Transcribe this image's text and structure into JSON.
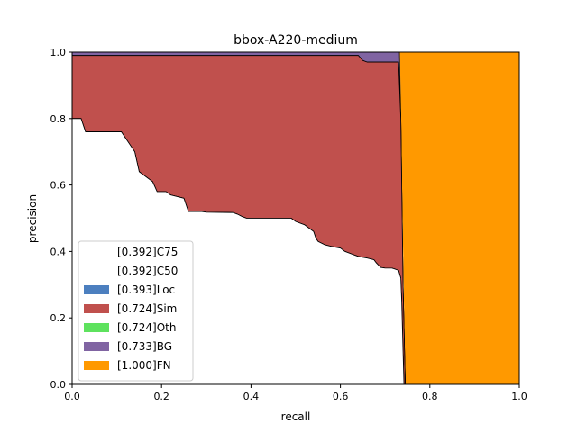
{
  "chart_data": {
    "type": "area",
    "title": "bbox-A220-medium",
    "xlabel": "recall",
    "ylabel": "precision",
    "xlim": [
      0,
      1
    ],
    "ylim": [
      0,
      1
    ],
    "xticks": [
      "0.0",
      "0.2",
      "0.4",
      "0.6",
      "0.8",
      "1.0"
    ],
    "yticks": [
      "0.0",
      "0.2",
      "0.4",
      "0.6",
      "0.8",
      "1.0"
    ],
    "grid": false,
    "legend_position": "lower-left",
    "series": [
      {
        "name": "[0.392]C75",
        "color": "#ffffff",
        "points": [
          [
            0,
            0.8
          ],
          [
            0.02,
            0.8
          ],
          [
            0.03,
            0.76
          ],
          [
            0.11,
            0.76
          ],
          [
            0.12,
            0.74
          ],
          [
            0.13,
            0.72
          ],
          [
            0.14,
            0.7
          ],
          [
            0.15,
            0.64
          ],
          [
            0.16,
            0.63
          ],
          [
            0.18,
            0.61
          ],
          [
            0.19,
            0.58
          ],
          [
            0.21,
            0.58
          ],
          [
            0.22,
            0.57
          ],
          [
            0.25,
            0.56
          ],
          [
            0.26,
            0.52
          ],
          [
            0.29,
            0.52
          ],
          [
            0.3,
            0.518
          ],
          [
            0.36,
            0.517
          ],
          [
            0.37,
            0.512
          ],
          [
            0.38,
            0.505
          ],
          [
            0.39,
            0.5
          ],
          [
            0.49,
            0.5
          ],
          [
            0.5,
            0.49
          ],
          [
            0.52,
            0.48
          ],
          [
            0.53,
            0.47
          ],
          [
            0.54,
            0.46
          ],
          [
            0.545,
            0.44
          ],
          [
            0.55,
            0.43
          ],
          [
            0.565,
            0.42
          ],
          [
            0.58,
            0.415
          ],
          [
            0.6,
            0.41
          ],
          [
            0.61,
            0.4
          ],
          [
            0.63,
            0.39
          ],
          [
            0.64,
            0.385
          ],
          [
            0.66,
            0.38
          ],
          [
            0.675,
            0.375
          ],
          [
            0.68,
            0.366
          ],
          [
            0.69,
            0.352
          ],
          [
            0.7,
            0.35
          ],
          [
            0.715,
            0.35
          ],
          [
            0.72,
            0.348
          ],
          [
            0.73,
            0.343
          ],
          [
            0.735,
            0.32
          ],
          [
            0.737,
            0.25
          ],
          [
            0.74,
            0.1
          ],
          [
            0.742,
            0
          ]
        ]
      },
      {
        "name": "[0.392]C50",
        "color": "#ffffff",
        "points": [
          [
            0,
            0.8
          ],
          [
            0.02,
            0.8
          ],
          [
            0.03,
            0.76
          ],
          [
            0.11,
            0.76
          ],
          [
            0.12,
            0.74
          ],
          [
            0.13,
            0.72
          ],
          [
            0.14,
            0.7
          ],
          [
            0.15,
            0.64
          ],
          [
            0.16,
            0.63
          ],
          [
            0.18,
            0.61
          ],
          [
            0.19,
            0.58
          ],
          [
            0.21,
            0.58
          ],
          [
            0.22,
            0.57
          ],
          [
            0.25,
            0.56
          ],
          [
            0.26,
            0.52
          ],
          [
            0.29,
            0.52
          ],
          [
            0.3,
            0.518
          ],
          [
            0.36,
            0.517
          ],
          [
            0.37,
            0.512
          ],
          [
            0.38,
            0.505
          ],
          [
            0.39,
            0.5
          ],
          [
            0.49,
            0.5
          ],
          [
            0.5,
            0.49
          ],
          [
            0.52,
            0.48
          ],
          [
            0.53,
            0.47
          ],
          [
            0.54,
            0.46
          ],
          [
            0.545,
            0.44
          ],
          [
            0.55,
            0.43
          ],
          [
            0.565,
            0.42
          ],
          [
            0.58,
            0.415
          ],
          [
            0.6,
            0.41
          ],
          [
            0.61,
            0.4
          ],
          [
            0.63,
            0.39
          ],
          [
            0.64,
            0.385
          ],
          [
            0.66,
            0.38
          ],
          [
            0.675,
            0.375
          ],
          [
            0.68,
            0.366
          ],
          [
            0.69,
            0.352
          ],
          [
            0.7,
            0.35
          ],
          [
            0.715,
            0.35
          ],
          [
            0.72,
            0.348
          ],
          [
            0.73,
            0.343
          ],
          [
            0.735,
            0.32
          ],
          [
            0.737,
            0.25
          ],
          [
            0.74,
            0.1
          ],
          [
            0.742,
            0
          ]
        ]
      },
      {
        "name": "[0.393]Loc",
        "color": "#4c7fbf",
        "points": [
          [
            0,
            0.8
          ],
          [
            0.02,
            0.8
          ],
          [
            0.03,
            0.76
          ],
          [
            0.11,
            0.76
          ],
          [
            0.12,
            0.74
          ],
          [
            0.13,
            0.72
          ],
          [
            0.14,
            0.7
          ],
          [
            0.15,
            0.64
          ],
          [
            0.16,
            0.63
          ],
          [
            0.18,
            0.61
          ],
          [
            0.19,
            0.58
          ],
          [
            0.21,
            0.58
          ],
          [
            0.22,
            0.57
          ],
          [
            0.25,
            0.56
          ],
          [
            0.26,
            0.52
          ],
          [
            0.29,
            0.52
          ],
          [
            0.3,
            0.518
          ],
          [
            0.36,
            0.517
          ],
          [
            0.37,
            0.512
          ],
          [
            0.38,
            0.505
          ],
          [
            0.39,
            0.5
          ],
          [
            0.49,
            0.5
          ],
          [
            0.5,
            0.49
          ],
          [
            0.52,
            0.48
          ],
          [
            0.53,
            0.47
          ],
          [
            0.54,
            0.46
          ],
          [
            0.545,
            0.44
          ],
          [
            0.55,
            0.43
          ],
          [
            0.565,
            0.42
          ],
          [
            0.58,
            0.415
          ],
          [
            0.6,
            0.41
          ],
          [
            0.61,
            0.4
          ],
          [
            0.63,
            0.39
          ],
          [
            0.64,
            0.385
          ],
          [
            0.66,
            0.38
          ],
          [
            0.675,
            0.375
          ],
          [
            0.68,
            0.366
          ],
          [
            0.69,
            0.352
          ],
          [
            0.7,
            0.35
          ],
          [
            0.715,
            0.35
          ],
          [
            0.72,
            0.348
          ],
          [
            0.73,
            0.343
          ],
          [
            0.735,
            0.32
          ],
          [
            0.737,
            0.25
          ],
          [
            0.74,
            0.1
          ],
          [
            0.742,
            0
          ]
        ]
      },
      {
        "name": "[0.724]Sim",
        "color": "#c0504d",
        "points": [
          [
            0,
            0.99
          ],
          [
            0.64,
            0.99
          ],
          [
            0.65,
            0.975
          ],
          [
            0.66,
            0.97
          ],
          [
            0.68,
            0.97
          ],
          [
            0.7,
            0.97
          ],
          [
            0.73,
            0.97
          ],
          [
            0.735,
            0.8
          ],
          [
            0.74,
            0.3
          ],
          [
            0.745,
            0
          ]
        ]
      },
      {
        "name": "[0.724]Oth",
        "color": "#5ee25e",
        "points": [
          [
            0,
            0.99
          ],
          [
            0.64,
            0.99
          ],
          [
            0.65,
            0.975
          ],
          [
            0.66,
            0.97
          ],
          [
            0.68,
            0.97
          ],
          [
            0.7,
            0.97
          ],
          [
            0.73,
            0.97
          ],
          [
            0.735,
            0.8
          ],
          [
            0.74,
            0.3
          ],
          [
            0.745,
            0
          ]
        ]
      },
      {
        "name": "[0.733]BG",
        "color": "#8064a2",
        "points": [
          [
            0,
            1
          ],
          [
            0.732,
            1
          ],
          [
            0.735,
            0.8
          ],
          [
            0.74,
            0.3
          ],
          [
            0.745,
            0
          ]
        ]
      },
      {
        "name": "[1.000]FN",
        "color": "#ff9900",
        "points": [
          [
            0,
            1
          ],
          [
            0.732,
            1
          ],
          [
            0.733,
            1
          ],
          [
            1,
            1
          ]
        ]
      }
    ],
    "fn_region": {
      "x_start": 0.733,
      "x_bottom": 0.745
    }
  }
}
